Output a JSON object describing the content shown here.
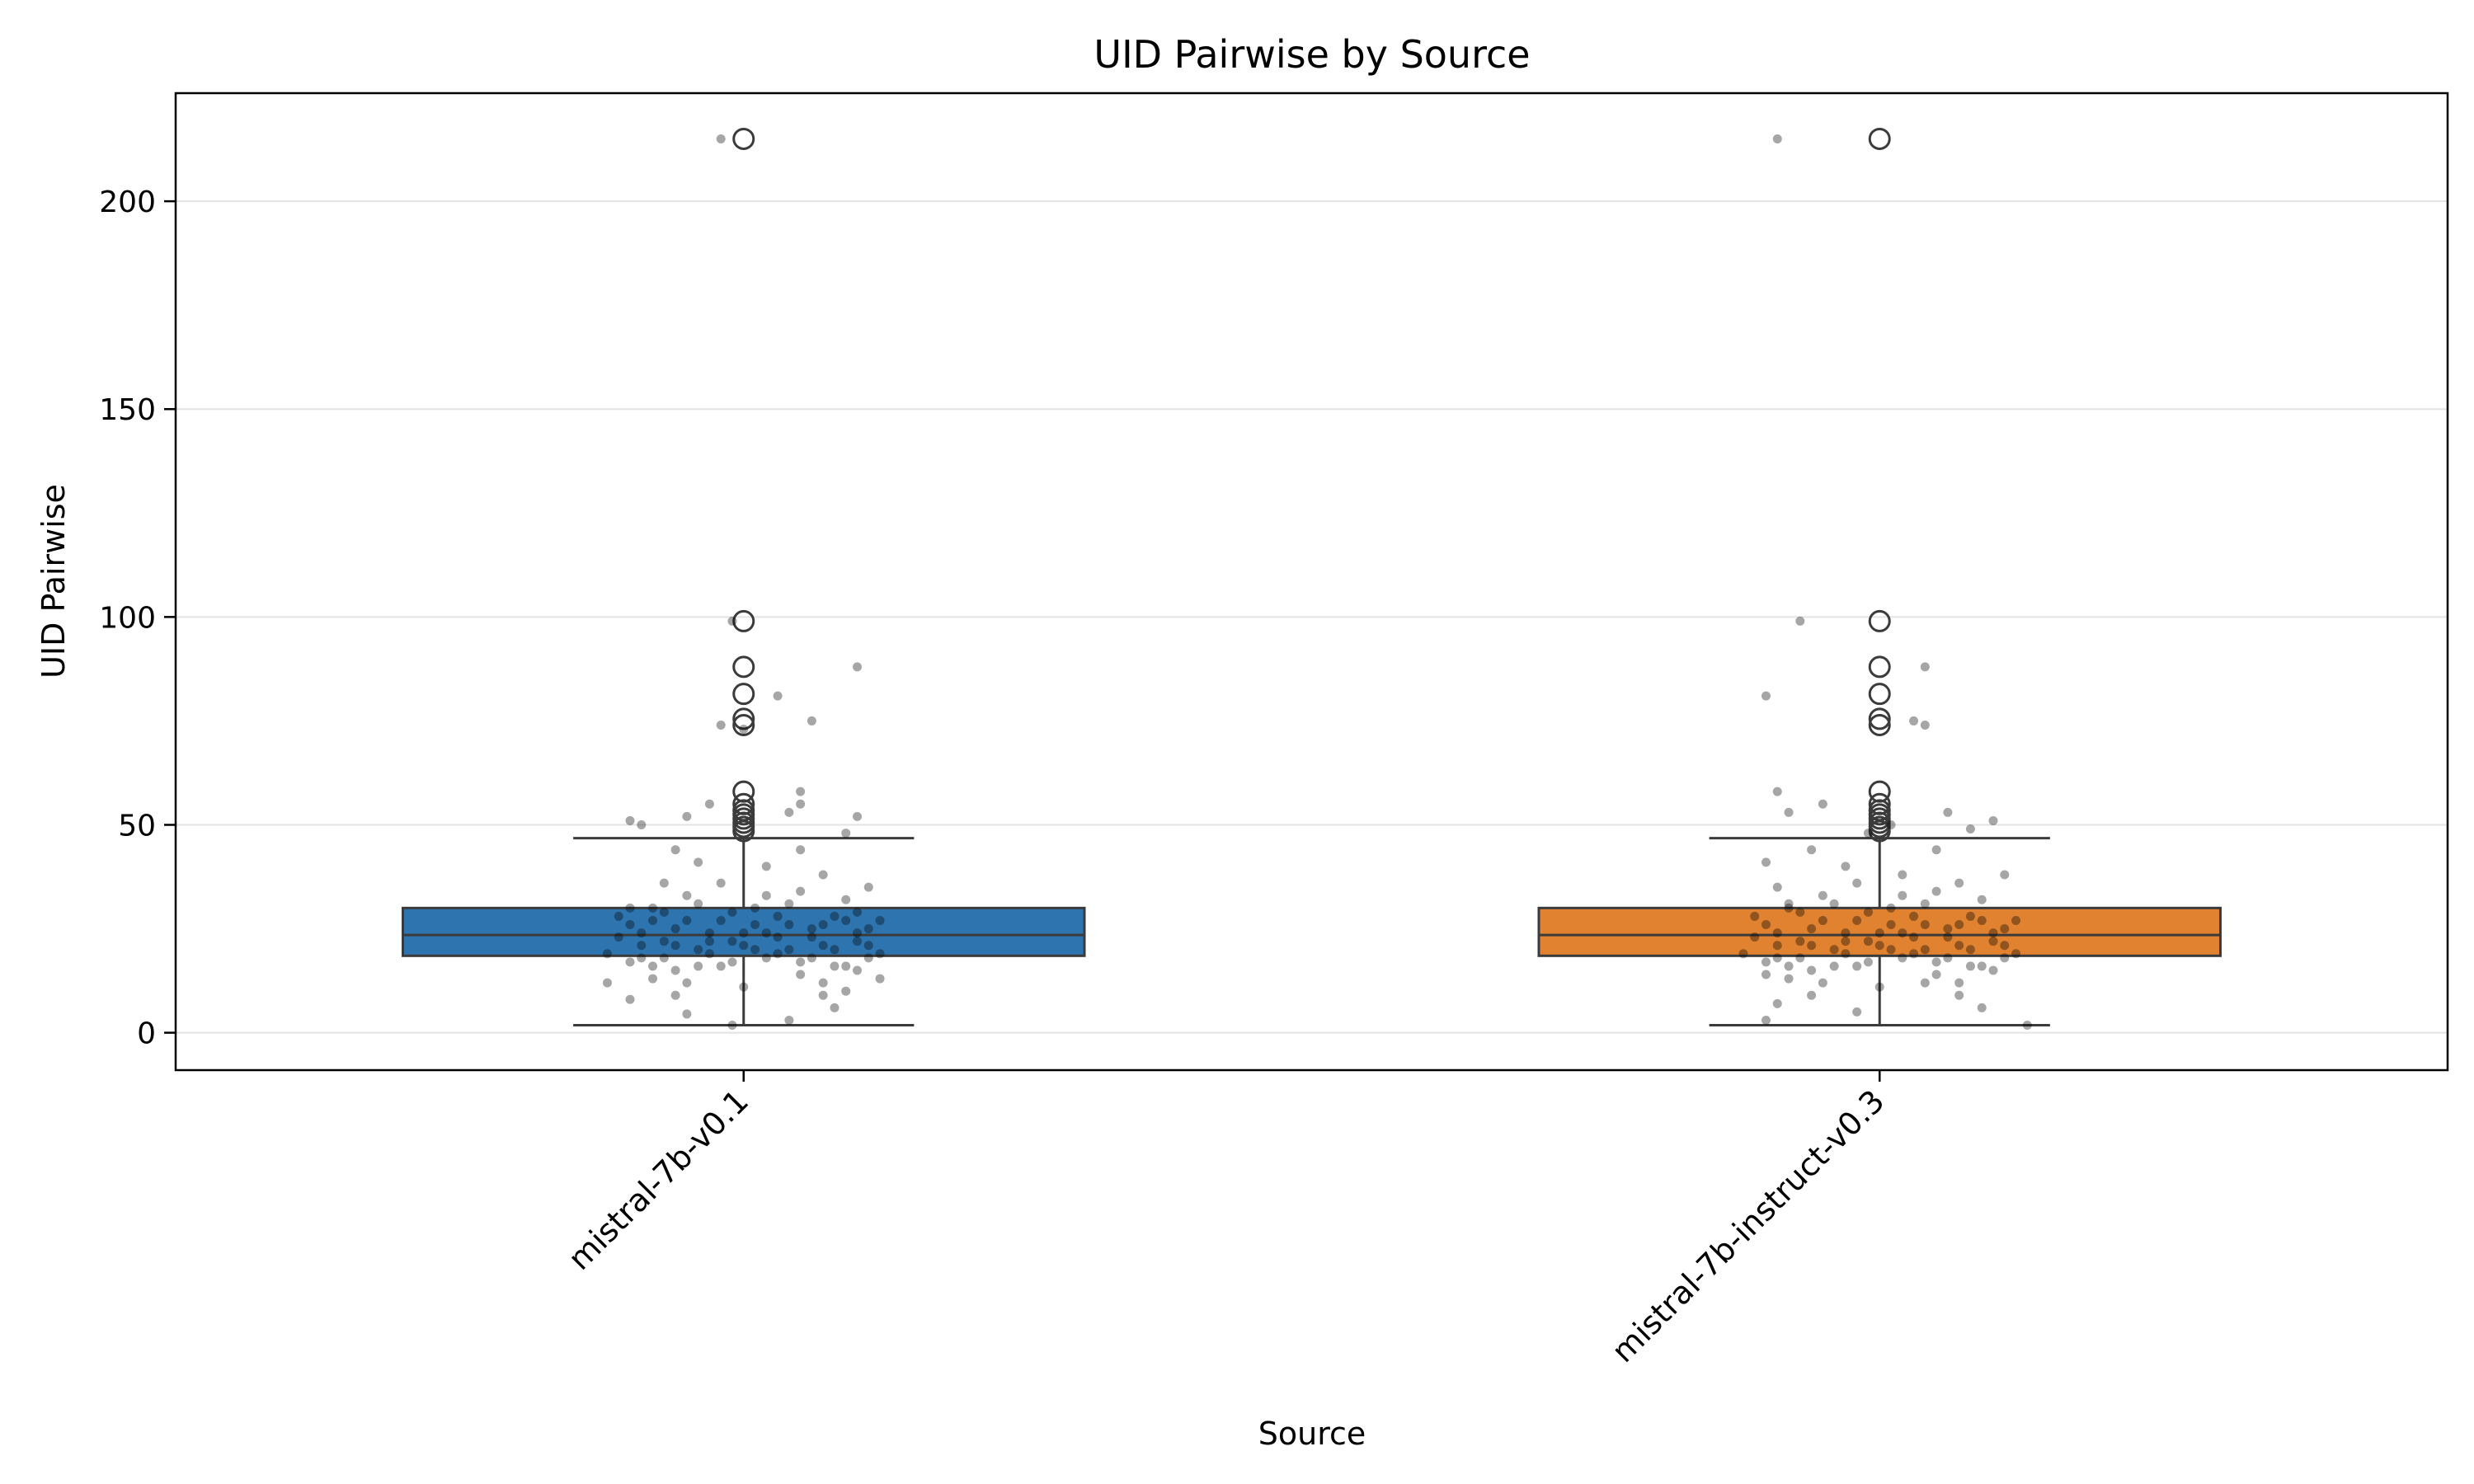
{
  "chart_data": {
    "type": "box",
    "title": "UID Pairwise by Source",
    "xlabel": "Source",
    "ylabel": "UID Pairwise",
    "ylim": [
      -9,
      226
    ],
    "yticks": [
      0,
      50,
      100,
      150,
      200
    ],
    "grid": "horizontal",
    "categories": [
      "mistral-7b-v0.1",
      "mistral-7b-instruct-v0.3"
    ],
    "boxes": [
      {
        "category": "mistral-7b-v0.1",
        "color": "#2e75b0",
        "q1": 18.5,
        "median": 23.5,
        "q3": 30.0,
        "whisker_low": 1.8,
        "whisker_high": 46.8,
        "outliers": [
          215,
          99,
          88,
          81.5,
          75.5,
          74,
          58,
          55,
          53.5,
          52.5,
          51.5,
          50.5,
          49.5,
          48.5
        ]
      },
      {
        "category": "mistral-7b-instruct-v0.3",
        "color": "#e0822f",
        "q1": 18.5,
        "median": 23.5,
        "q3": 30.0,
        "whisker_low": 1.8,
        "whisker_high": 46.8,
        "outliers": [
          215,
          99,
          88,
          81.5,
          75.5,
          74,
          58,
          55,
          53.5,
          52.5,
          51.5,
          50.5,
          49.5,
          48.5
        ]
      }
    ],
    "strip_points": [
      {
        "category": "mistral-7b-v0.1",
        "points": [
          [
            -0.02,
            215
          ],
          [
            0.03,
            81
          ],
          [
            0.06,
            75
          ],
          [
            0.1,
            88
          ],
          [
            -0.01,
            99
          ],
          [
            -0.02,
            74
          ],
          [
            0.0,
            73
          ],
          [
            -0.1,
            51
          ],
          [
            -0.09,
            50
          ],
          [
            -0.05,
            52
          ],
          [
            0.04,
            53
          ],
          [
            0.05,
            55
          ],
          [
            0.09,
            48
          ],
          [
            0.1,
            52
          ],
          [
            0.05,
            58
          ],
          [
            -0.03,
            55
          ],
          [
            -0.1,
            30
          ],
          [
            -0.08,
            27
          ],
          [
            -0.12,
            12
          ],
          [
            -0.1,
            8
          ],
          [
            -0.05,
            4.5
          ],
          [
            -0.01,
            1.8
          ],
          [
            0.04,
            3
          ],
          [
            0.08,
            6
          ],
          [
            0.09,
            10
          ],
          [
            0.12,
            13
          ],
          [
            -0.06,
            44
          ],
          [
            -0.04,
            41
          ],
          [
            0.02,
            40
          ],
          [
            0.07,
            38
          ],
          [
            0.11,
            35
          ],
          [
            -0.07,
            36
          ],
          [
            0.1,
            29
          ],
          [
            0.05,
            44
          ],
          [
            -0.09,
            21
          ],
          [
            -0.08,
            16
          ],
          [
            -0.07,
            18
          ],
          [
            -0.06,
            25
          ],
          [
            -0.05,
            12
          ],
          [
            -0.04,
            31
          ],
          [
            -0.03,
            22
          ],
          [
            -0.02,
            27
          ],
          [
            -0.01,
            17
          ],
          [
            0.0,
            24
          ],
          [
            0.01,
            20
          ],
          [
            0.02,
            33
          ],
          [
            0.03,
            19
          ],
          [
            0.04,
            26
          ],
          [
            0.05,
            14
          ],
          [
            0.06,
            23
          ],
          [
            0.07,
            21
          ],
          [
            0.08,
            28
          ],
          [
            0.09,
            16
          ],
          [
            0.1,
            22
          ],
          [
            0.11,
            25
          ],
          [
            0.12,
            19
          ],
          [
            -0.11,
            23
          ],
          [
            -0.1,
            26
          ],
          [
            -0.09,
            18
          ],
          [
            -0.08,
            30
          ],
          [
            -0.07,
            22
          ],
          [
            -0.06,
            15
          ],
          [
            -0.05,
            27
          ],
          [
            -0.04,
            20
          ],
          [
            -0.03,
            24
          ],
          [
            -0.02,
            16
          ],
          [
            -0.01,
            29
          ],
          [
            0.0,
            21
          ],
          [
            0.01,
            26
          ],
          [
            0.02,
            18
          ],
          [
            0.03,
            23
          ],
          [
            0.04,
            31
          ],
          [
            0.05,
            17
          ],
          [
            0.06,
            25
          ],
          [
            0.07,
            12
          ],
          [
            0.08,
            20
          ],
          [
            0.09,
            27
          ],
          [
            0.1,
            15
          ],
          [
            0.11,
            21
          ],
          [
            -0.12,
            19
          ],
          [
            -0.11,
            28
          ],
          [
            -0.1,
            17
          ],
          [
            -0.09,
            24
          ],
          [
            -0.08,
            13
          ],
          [
            -0.07,
            29
          ],
          [
            -0.06,
            21
          ],
          [
            -0.05,
            33
          ],
          [
            -0.04,
            16
          ],
          [
            -0.03,
            19
          ],
          [
            -0.02,
            36
          ],
          [
            -0.01,
            22
          ],
          [
            0.0,
            11
          ],
          [
            0.01,
            30
          ],
          [
            0.02,
            24
          ],
          [
            0.03,
            28
          ],
          [
            0.04,
            20
          ],
          [
            0.05,
            34
          ],
          [
            0.06,
            18
          ],
          [
            0.07,
            26
          ],
          [
            0.08,
            16
          ],
          [
            0.09,
            32
          ],
          [
            0.1,
            24
          ],
          [
            0.11,
            18
          ],
          [
            0.12,
            27
          ],
          [
            -0.06,
            9
          ],
          [
            0.07,
            9
          ]
        ]
      },
      {
        "category": "mistral-7b-instruct-v0.3",
        "points": [
          [
            -0.09,
            215
          ],
          [
            -0.07,
            99
          ],
          [
            -0.1,
            81
          ],
          [
            0.04,
            88
          ],
          [
            0.03,
            75
          ],
          [
            0.04,
            74
          ],
          [
            -0.09,
            58
          ],
          [
            -0.05,
            55
          ],
          [
            -0.08,
            53
          ],
          [
            0.06,
            53
          ],
          [
            0.1,
            51
          ],
          [
            0.01,
            50
          ],
          [
            -0.01,
            48
          ],
          [
            0.08,
            49
          ],
          [
            -0.1,
            41
          ],
          [
            -0.09,
            35
          ],
          [
            -0.08,
            31
          ],
          [
            -0.1,
            14
          ],
          [
            -0.09,
            7
          ],
          [
            -0.1,
            3
          ],
          [
            -0.02,
            5
          ],
          [
            0.04,
            12
          ],
          [
            0.09,
            6
          ],
          [
            0.13,
            1.8
          ],
          [
            -0.06,
            44
          ],
          [
            -0.03,
            40
          ],
          [
            0.02,
            38
          ],
          [
            0.07,
            36
          ],
          [
            0.11,
            38
          ],
          [
            0.05,
            44
          ],
          [
            -0.09,
            21
          ],
          [
            -0.08,
            16
          ],
          [
            -0.07,
            18
          ],
          [
            -0.06,
            25
          ],
          [
            -0.05,
            12
          ],
          [
            -0.04,
            31
          ],
          [
            -0.03,
            22
          ],
          [
            -0.02,
            27
          ],
          [
            -0.01,
            17
          ],
          [
            0.0,
            24
          ],
          [
            0.01,
            20
          ],
          [
            0.02,
            33
          ],
          [
            0.03,
            19
          ],
          [
            0.04,
            26
          ],
          [
            0.05,
            14
          ],
          [
            0.06,
            23
          ],
          [
            0.07,
            21
          ],
          [
            0.08,
            28
          ],
          [
            0.09,
            16
          ],
          [
            0.1,
            22
          ],
          [
            0.11,
            25
          ],
          [
            0.12,
            19
          ],
          [
            -0.11,
            23
          ],
          [
            -0.1,
            26
          ],
          [
            -0.09,
            18
          ],
          [
            -0.08,
            30
          ],
          [
            -0.07,
            22
          ],
          [
            -0.06,
            15
          ],
          [
            -0.05,
            27
          ],
          [
            -0.04,
            20
          ],
          [
            -0.03,
            24
          ],
          [
            -0.02,
            16
          ],
          [
            -0.01,
            29
          ],
          [
            0.0,
            21
          ],
          [
            0.01,
            26
          ],
          [
            0.02,
            18
          ],
          [
            0.03,
            23
          ],
          [
            0.04,
            31
          ],
          [
            0.05,
            17
          ],
          [
            0.06,
            25
          ],
          [
            0.07,
            12
          ],
          [
            0.08,
            20
          ],
          [
            0.09,
            27
          ],
          [
            0.1,
            15
          ],
          [
            0.11,
            21
          ],
          [
            -0.12,
            19
          ],
          [
            -0.11,
            28
          ],
          [
            -0.1,
            17
          ],
          [
            -0.09,
            24
          ],
          [
            -0.08,
            13
          ],
          [
            -0.07,
            29
          ],
          [
            -0.06,
            21
          ],
          [
            -0.05,
            33
          ],
          [
            -0.04,
            16
          ],
          [
            -0.03,
            19
          ],
          [
            -0.02,
            36
          ],
          [
            -0.01,
            22
          ],
          [
            0.0,
            11
          ],
          [
            0.01,
            30
          ],
          [
            0.02,
            24
          ],
          [
            0.03,
            28
          ],
          [
            0.04,
            20
          ],
          [
            0.05,
            34
          ],
          [
            0.06,
            18
          ],
          [
            0.07,
            26
          ],
          [
            0.08,
            16
          ],
          [
            0.09,
            32
          ],
          [
            0.1,
            24
          ],
          [
            0.11,
            18
          ],
          [
            0.12,
            27
          ],
          [
            -0.06,
            9
          ],
          [
            0.07,
            9
          ]
        ]
      }
    ]
  }
}
